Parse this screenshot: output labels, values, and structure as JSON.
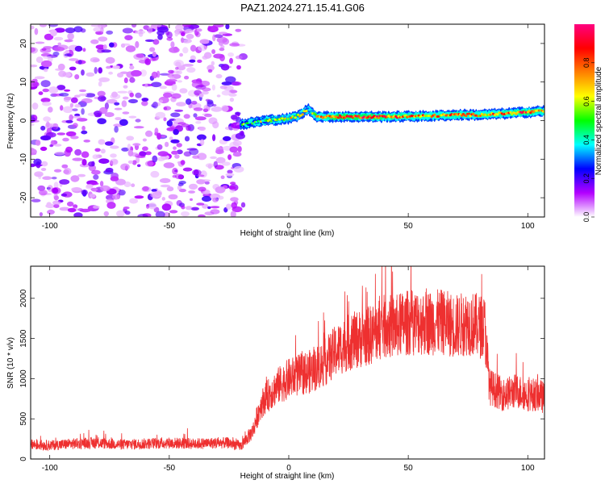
{
  "title": "PAZ1.2024.271.15.41.G06",
  "chart_data": [
    {
      "type": "heatmap",
      "xlabel": "Height of straight line (km)",
      "ylabel": "Frequency (Hz)",
      "xlim": [
        -108,
        107
      ],
      "ylim": [
        -25,
        25
      ],
      "xticks": [
        -100,
        -50,
        0,
        50,
        100
      ],
      "yticks": [
        20,
        10,
        0,
        -10,
        -20
      ],
      "colorbar": {
        "label": "Normalized spectral amplitude",
        "range": [
          0,
          1
        ],
        "ticks": [
          0.0,
          0.2,
          0.4,
          0.6,
          0.8
        ],
        "colors": [
          "#ffffff",
          "#b300ff",
          "#0000ff",
          "#00ffff",
          "#00ff00",
          "#ffff00",
          "#ff8000",
          "#ff0000",
          "#ff0080"
        ]
      },
      "noise_region_x": [
        -108,
        -19
      ],
      "signal_track": {
        "x": [
          -20,
          -10,
          0,
          5,
          8,
          12,
          20,
          40,
          60,
          70,
          80,
          90,
          100,
          107
        ],
        "y": [
          -1,
          0,
          0.5,
          1.5,
          3,
          1,
          1,
          1,
          1.2,
          1.5,
          1.5,
          1.8,
          2.2,
          2.5
        ],
        "amplitude": [
          0.45,
          0.5,
          0.6,
          0.55,
          0.5,
          0.65,
          0.85,
          0.8,
          0.7,
          0.75,
          0.7,
          0.75,
          0.8,
          0.7
        ]
      },
      "grid": false
    },
    {
      "type": "line",
      "xlabel": "Height of straight line (km)",
      "ylabel": "SNR (10 * v/v)",
      "xlim": [
        -108,
        107
      ],
      "ylim": [
        0,
        2400
      ],
      "xticks": [
        -100,
        -50,
        0,
        50,
        100
      ],
      "yticks": [
        0,
        500,
        1000,
        1500,
        2000
      ],
      "color": "#ee3030",
      "grid": false,
      "series": [
        {
          "x": [
            -108,
            -100,
            -90,
            -80,
            -70,
            -60,
            -50,
            -40,
            -30,
            -25,
            -20,
            -15,
            -12,
            -10,
            -5,
            0,
            5,
            10,
            15,
            20,
            25,
            30,
            35,
            40,
            45,
            50,
            55,
            60,
            65,
            70,
            75,
            80,
            82,
            84,
            90,
            95,
            100,
            105,
            107
          ],
          "values": [
            180,
            170,
            190,
            200,
            180,
            190,
            200,
            190,
            200,
            200,
            160,
            350,
            650,
            750,
            900,
            1000,
            1050,
            1100,
            1200,
            1350,
            1450,
            1500,
            1550,
            1650,
            1650,
            1700,
            1700,
            1700,
            1700,
            1650,
            1700,
            1650,
            1650,
            900,
            800,
            850,
            800,
            800,
            750
          ]
        }
      ]
    }
  ]
}
